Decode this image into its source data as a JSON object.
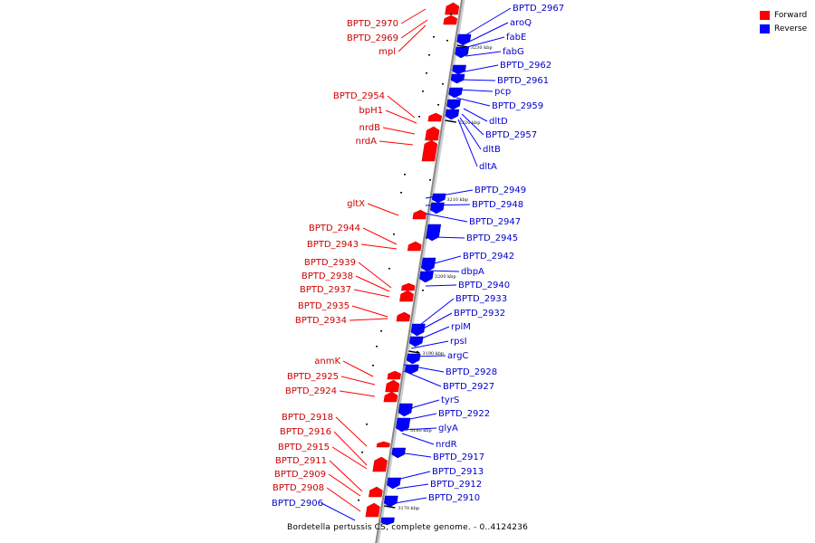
{
  "caption": "Bordetella pertussis CS, complete genome. - 0..4124236",
  "legend": [
    {
      "label": "Forward",
      "color": "#ff0000"
    },
    {
      "label": "Reverse",
      "color": "#0000ff"
    }
  ],
  "colors": {
    "forward": "#ff0000",
    "reverse": "#0000ff",
    "backbone": "#888888"
  },
  "forward_genes": [
    "BPTD_2970",
    "BPTD_2969",
    "mpl",
    "BPTD_2954",
    "bpH1",
    "nrdB",
    "nrdA",
    "gltX",
    "BPTD_2944",
    "BPTD_2943",
    "BPTD_2939",
    "BPTD_2938",
    "BPTD_2937",
    "BPTD_2935",
    "BPTD_2934",
    "anmK",
    "BPTD_2925",
    "BPTD_2924",
    "BPTD_2918",
    "BPTD_2916",
    "BPTD_2915",
    "BPTD_2911",
    "BPTD_2909",
    "BPTD_2908"
  ],
  "reverse_genes": [
    "BPTD_2967",
    "aroQ",
    "fabE",
    "fabG",
    "BPTD_2962",
    "BPTD_2961",
    "pcp",
    "BPTD_2959",
    "dltD",
    "BPTD_2957",
    "dltB",
    "dltA",
    "BPTD_2949",
    "BPTD_2948",
    "BPTD_2947",
    "BPTD_2945",
    "BPTD_2942",
    "dbpA",
    "BPTD_2940",
    "BPTD_2933",
    "BPTD_2932",
    "rplM",
    "rpsI",
    "argC",
    "BPTD_2928",
    "BPTD_2927",
    "tyrS",
    "BPTD_2922",
    "glyA",
    "nrdR",
    "BPTD_2917",
    "BPTD_2913",
    "BPTD_2912",
    "BPTD_2910",
    "BPTD_2906"
  ],
  "ticks": [
    "3230 kbp",
    "3220 kbp",
    "3210 kbp",
    "3200 kbp",
    "3190 kbp",
    "3180 kbp",
    "3170 kbp"
  ]
}
